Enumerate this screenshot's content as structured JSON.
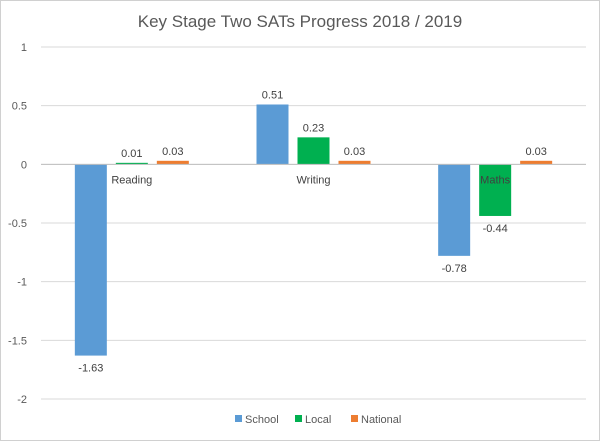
{
  "chart_data": {
    "type": "bar",
    "title": "Key Stage Two SATs Progress 2018 / 2019",
    "categories": [
      "Reading",
      "Writing",
      "Maths"
    ],
    "series": [
      {
        "name": "School",
        "color": "#5b9bd5",
        "values": [
          -1.63,
          0.51,
          -0.78
        ]
      },
      {
        "name": "Local",
        "color": "#00b050",
        "values": [
          0.01,
          0.23,
          -0.44
        ]
      },
      {
        "name": "National",
        "color": "#ed7d31",
        "values": [
          0.03,
          0.03,
          0.03
        ]
      }
    ],
    "ylim": [
      -2,
      1
    ],
    "yticks": [
      "1",
      "0.5",
      "0",
      "-0.5",
      "-1",
      "-1.5",
      "-2"
    ],
    "ytick_values": [
      1,
      0.5,
      0,
      -0.5,
      -1,
      -1.5,
      -2
    ],
    "data_labels": [
      [
        "-1.63",
        "0.51",
        "-0.78"
      ],
      [
        "0.01",
        "0.23",
        "-0.44"
      ],
      [
        "0.03",
        "0.03",
        "0.03"
      ]
    ],
    "legend_position": "bottom",
    "gridlines": true
  }
}
